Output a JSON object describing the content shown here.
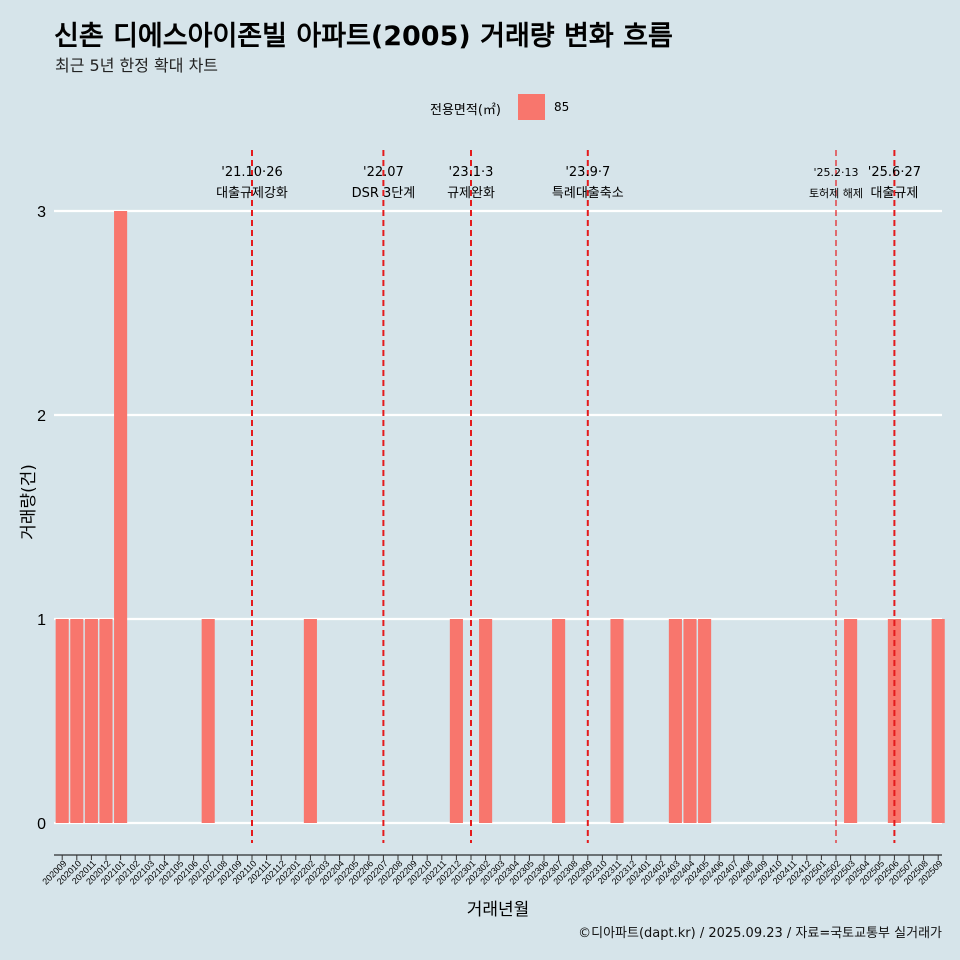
{
  "title": "신촌 디에스아이존빌 아파트(2005) 거래량 변화 흐름",
  "subtitle": "최근 5년 한정 확대 차트",
  "legend": {
    "title": "전용면적(㎡)",
    "items": [
      {
        "label": "85",
        "color": "#F8766D"
      }
    ],
    "placement": "top"
  },
  "caption": "©디아파트(dapt.kr) / 2025.09.23 / 자료=국토교통부 실거래가",
  "chart_data": {
    "type": "bar",
    "xlabel": "거래년월",
    "ylabel": "거래량(건)",
    "ylim": [
      0,
      3
    ],
    "yticks": [
      0,
      1,
      2,
      3
    ],
    "grid": true,
    "bar_color": "#F8766D",
    "categories": [
      "202009",
      "202010",
      "202011",
      "202012",
      "202101",
      "202102",
      "202103",
      "202104",
      "202105",
      "202106",
      "202107",
      "202108",
      "202109",
      "202110",
      "202111",
      "202112",
      "202201",
      "202202",
      "202203",
      "202204",
      "202205",
      "202206",
      "202207",
      "202208",
      "202209",
      "202210",
      "202211",
      "202212",
      "202301",
      "202302",
      "202303",
      "202304",
      "202305",
      "202306",
      "202307",
      "202308",
      "202309",
      "202310",
      "202311",
      "202312",
      "202401",
      "202402",
      "202403",
      "202404",
      "202405",
      "202406",
      "202407",
      "202408",
      "202409",
      "202410",
      "202411",
      "202412",
      "202501",
      "202502",
      "202503",
      "202504",
      "202505",
      "202506",
      "202507",
      "202508",
      "202509"
    ],
    "series": [
      {
        "name": "85",
        "values": [
          1,
          1,
          1,
          1,
          3,
          0,
          0,
          0,
          0,
          0,
          1,
          0,
          0,
          0,
          0,
          0,
          0,
          1,
          0,
          0,
          0,
          0,
          0,
          0,
          0,
          0,
          0,
          1,
          0,
          1,
          0,
          0,
          0,
          0,
          1,
          0,
          0,
          0,
          1,
          0,
          0,
          0,
          1,
          1,
          1,
          0,
          0,
          0,
          0,
          0,
          0,
          0,
          0,
          0,
          1,
          0,
          0,
          1,
          0,
          0,
          1
        ]
      }
    ],
    "annotations": [
      {
        "x": "202110",
        "date": "'21.10·26",
        "label": "대출규제강화"
      },
      {
        "x": "202207",
        "date": "'22.07",
        "label": "DSR 3단계"
      },
      {
        "x": "202301",
        "date": "'23.1·3",
        "label": "규제완화"
      },
      {
        "x": "202309",
        "date": "'23.9·7",
        "label": "특례대출축소"
      },
      {
        "x": "202502",
        "date": "'25.2·13",
        "label": "토허제 해제"
      },
      {
        "x": "202506",
        "date": "'25.6·27",
        "label": "대출규제"
      }
    ],
    "annotation_line_color": "#E41A1C"
  }
}
